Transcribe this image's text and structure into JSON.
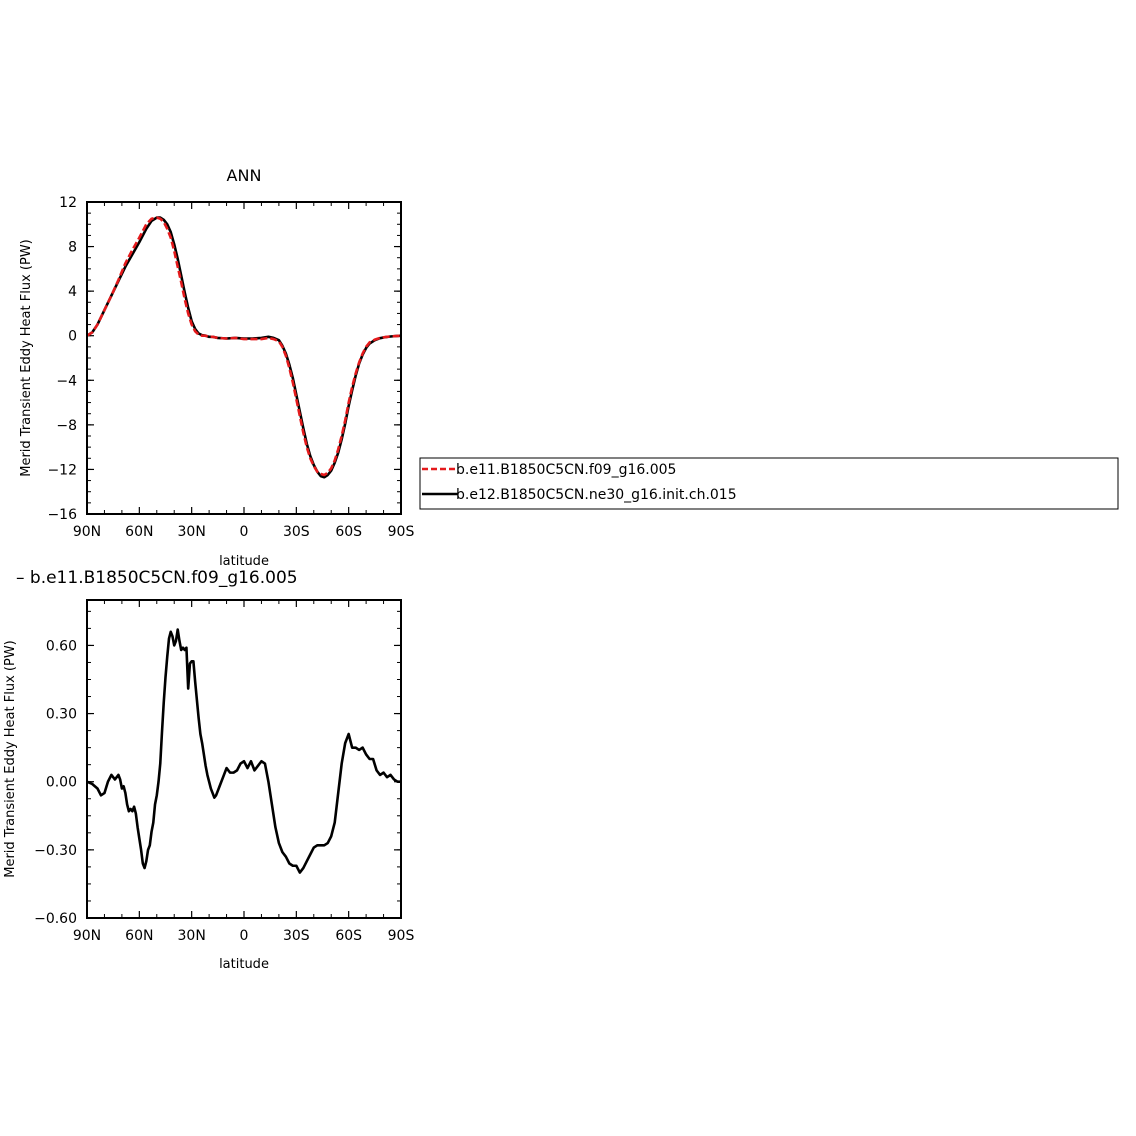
{
  "chart_data": [
    {
      "type": "line",
      "title": "ANN",
      "xlabel": "latitude",
      "ylabel": "Merid Transient Eddy Heat Flux (PW)",
      "xlim": [
        90,
        -90
      ],
      "ylim": [
        -16,
        12
      ],
      "xtick_values": [
        90,
        60,
        30,
        0,
        -30,
        -60,
        -90
      ],
      "xtick_labels": [
        "90N",
        "60N",
        "30N",
        "0",
        "30S",
        "60S",
        "90S"
      ],
      "ytick_values": [
        12,
        8,
        4,
        0,
        -4,
        -8,
        -12,
        -16
      ],
      "ytick_labels": [
        "12",
        "8",
        "4",
        "0",
        "−4",
        "−8",
        "−12",
        "−16"
      ],
      "series": [
        {
          "name": "b.e11.B1850C5CN.f09_g16.005",
          "color": "#e41a1c",
          "dash": "dashed",
          "x": [
            90,
            87,
            84,
            80,
            76,
            72,
            68,
            64,
            60,
            56,
            53,
            50,
            48,
            46,
            44,
            42,
            40,
            38,
            36,
            34,
            32,
            30,
            28,
            26,
            24,
            22,
            20,
            18,
            15,
            10,
            5,
            0,
            -5,
            -10,
            -14,
            -17,
            -20,
            -22,
            -24,
            -26,
            -28,
            -30,
            -32,
            -34,
            -36,
            -38,
            -40,
            -42,
            -44,
            -46,
            -48,
            -50,
            -52,
            -54,
            -56,
            -58,
            -60,
            -62,
            -64,
            -66,
            -68,
            -70,
            -72,
            -75,
            -78,
            -81,
            -84,
            -87,
            -90
          ],
          "y": [
            0.0,
            0.3,
            1.0,
            2.3,
            3.6,
            5.0,
            6.5,
            7.7,
            8.8,
            10.0,
            10.5,
            10.6,
            10.5,
            10.2,
            9.6,
            8.8,
            7.6,
            6.2,
            4.8,
            3.3,
            2.0,
            1.0,
            0.4,
            0.1,
            0.0,
            0.0,
            -0.1,
            -0.1,
            -0.2,
            -0.25,
            -0.2,
            -0.3,
            -0.3,
            -0.3,
            -0.2,
            -0.3,
            -0.5,
            -1.0,
            -1.8,
            -2.9,
            -4.2,
            -5.7,
            -7.2,
            -8.7,
            -10.0,
            -11.0,
            -11.7,
            -12.2,
            -12.4,
            -12.5,
            -12.3,
            -11.9,
            -11.2,
            -10.2,
            -9.0,
            -7.6,
            -6.0,
            -4.6,
            -3.4,
            -2.4,
            -1.6,
            -1.0,
            -0.6,
            -0.35,
            -0.2,
            -0.12,
            -0.06,
            -0.03,
            0.0
          ]
        },
        {
          "name": "b.e12.B1850C5CN.ne30_g16.init.ch.015",
          "color": "#000000",
          "dash": "solid",
          "x": [
            90,
            87,
            84,
            80,
            76,
            72,
            68,
            64,
            60,
            56,
            53,
            50,
            48,
            46,
            44,
            42,
            40,
            38,
            36,
            34,
            32,
            30,
            28,
            26,
            24,
            22,
            20,
            18,
            15,
            10,
            5,
            0,
            -5,
            -10,
            -14,
            -17,
            -20,
            -22,
            -24,
            -26,
            -28,
            -30,
            -32,
            -34,
            -36,
            -38,
            -40,
            -42,
            -44,
            -46,
            -48,
            -50,
            -52,
            -54,
            -56,
            -58,
            -60,
            -62,
            -64,
            -66,
            -68,
            -70,
            -72,
            -75,
            -78,
            -81,
            -84,
            -87,
            -90
          ],
          "y": [
            0.0,
            0.3,
            1.0,
            2.3,
            3.6,
            4.9,
            6.2,
            7.3,
            8.4,
            9.6,
            10.3,
            10.6,
            10.6,
            10.4,
            10.0,
            9.3,
            8.2,
            6.9,
            5.4,
            3.9,
            2.5,
            1.3,
            0.6,
            0.2,
            0.05,
            0.0,
            -0.1,
            -0.1,
            -0.2,
            -0.25,
            -0.2,
            -0.25,
            -0.25,
            -0.2,
            -0.1,
            -0.2,
            -0.4,
            -0.9,
            -1.6,
            -2.6,
            -3.8,
            -5.3,
            -6.8,
            -8.3,
            -9.7,
            -10.8,
            -11.6,
            -12.2,
            -12.6,
            -12.7,
            -12.5,
            -12.1,
            -11.4,
            -10.5,
            -9.3,
            -7.9,
            -6.3,
            -4.9,
            -3.6,
            -2.5,
            -1.7,
            -1.1,
            -0.7,
            -0.4,
            -0.22,
            -0.13,
            -0.07,
            -0.03,
            0.0
          ]
        }
      ],
      "legend": {
        "position": "right",
        "entries": [
          "b.e11.B1850C5CN.f09_g16.005",
          "b.e12.B1850C5CN.ne30_g16.init.ch.015"
        ]
      }
    },
    {
      "type": "line",
      "title": "– b.e11.B1850C5CN.f09_g16.005",
      "xlabel": "latitude",
      "ylabel": "Merid Transient Eddy Heat Flux (PW)",
      "xlim": [
        90,
        -90
      ],
      "ylim": [
        -0.6,
        0.8
      ],
      "xtick_values": [
        90,
        60,
        30,
        0,
        -30,
        -60,
        -90
      ],
      "xtick_labels": [
        "90N",
        "60N",
        "30N",
        "0",
        "30S",
        "60S",
        "90S"
      ],
      "ytick_values": [
        0.6,
        0.3,
        0.0,
        -0.3,
        -0.6
      ],
      "ytick_labels": [
        "0.60",
        "0.30",
        "0.00",
        "−0.30",
        "−0.60"
      ],
      "series": [
        {
          "color": "#000000",
          "dash": "solid",
          "x": [
            90,
            87,
            84,
            82,
            80,
            78,
            76,
            74,
            72,
            71,
            70,
            69,
            68,
            67,
            66,
            65,
            64,
            63,
            62,
            61,
            60,
            59,
            58,
            57,
            56,
            55,
            54,
            53,
            52,
            51,
            50,
            49,
            48,
            47,
            46,
            45,
            44,
            43,
            42,
            41,
            40,
            39,
            38,
            37,
            36,
            35,
            34,
            33,
            32,
            31,
            30,
            29,
            28,
            27,
            26,
            25,
            24,
            23,
            22,
            21,
            20,
            19,
            18,
            17,
            16,
            15,
            14,
            12,
            10,
            8,
            6,
            4,
            2,
            0,
            -2,
            -4,
            -6,
            -8,
            -10,
            -12,
            -14,
            -16,
            -18,
            -20,
            -22,
            -24,
            -26,
            -28,
            -30,
            -32,
            -34,
            -36,
            -38,
            -40,
            -42,
            -44,
            -46,
            -48,
            -50,
            -52,
            -54,
            -56,
            -58,
            -60,
            -62,
            -64,
            -66,
            -68,
            -70,
            -72,
            -74,
            -76,
            -78,
            -80,
            -82,
            -84,
            -86,
            -88,
            -90
          ],
          "y": [
            0.0,
            -0.01,
            -0.03,
            -0.06,
            -0.05,
            0.0,
            0.03,
            0.01,
            0.03,
            0.01,
            -0.03,
            -0.02,
            -0.05,
            -0.1,
            -0.13,
            -0.12,
            -0.13,
            -0.11,
            -0.14,
            -0.2,
            -0.25,
            -0.3,
            -0.36,
            -0.38,
            -0.35,
            -0.3,
            -0.28,
            -0.22,
            -0.18,
            -0.1,
            -0.06,
            0.0,
            0.08,
            0.22,
            0.35,
            0.46,
            0.55,
            0.63,
            0.66,
            0.64,
            0.6,
            0.62,
            0.67,
            0.62,
            0.58,
            0.59,
            0.58,
            0.59,
            0.41,
            0.52,
            0.53,
            0.53,
            0.44,
            0.36,
            0.28,
            0.21,
            0.17,
            0.12,
            0.07,
            0.03,
            0.0,
            -0.03,
            -0.05,
            -0.07,
            -0.06,
            -0.04,
            -0.02,
            0.02,
            0.06,
            0.04,
            0.04,
            0.05,
            0.08,
            0.09,
            0.06,
            0.09,
            0.05,
            0.07,
            0.09,
            0.08,
            0.0,
            -0.1,
            -0.2,
            -0.27,
            -0.31,
            -0.33,
            -0.36,
            -0.37,
            -0.37,
            -0.4,
            -0.38,
            -0.35,
            -0.32,
            -0.29,
            -0.28,
            -0.28,
            -0.28,
            -0.27,
            -0.24,
            -0.18,
            -0.05,
            0.08,
            0.17,
            0.21,
            0.15,
            0.15,
            0.14,
            0.15,
            0.12,
            0.1,
            0.1,
            0.05,
            0.03,
            0.04,
            0.02,
            0.03,
            0.01,
            0.0,
            0.0
          ]
        }
      ]
    }
  ]
}
